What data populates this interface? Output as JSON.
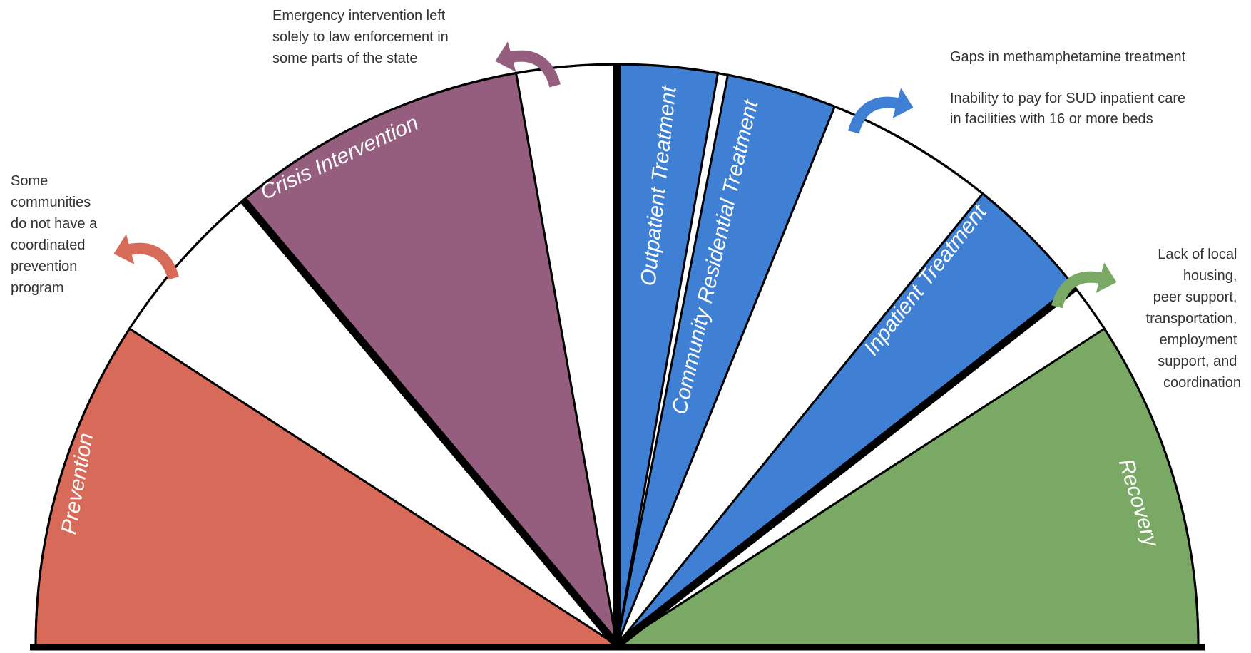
{
  "segments": [
    {
      "id": "prevention",
      "label": "Prevention",
      "color": "#d86a59"
    },
    {
      "id": "crisis",
      "label": "Crisis Intervention",
      "color": "#955e7e"
    },
    {
      "id": "outpatient",
      "label": "Outpatient Treatment",
      "color": "#3f80d4"
    },
    {
      "id": "community",
      "label": "Community Residential Treatment",
      "color": "#3f80d4"
    },
    {
      "id": "inpatient",
      "label": "Inpatient Treatment",
      "color": "#3f80d4"
    },
    {
      "id": "recovery",
      "label": "Recovery",
      "color": "#79a964"
    }
  ],
  "notes": {
    "prevention": [
      "Some",
      "communities",
      "do not have a",
      "coordinated",
      "prevention",
      "program"
    ],
    "crisis": [
      "Emergency intervention left",
      "solely to law enforcement in",
      "some parts of the state"
    ],
    "treatment_1": "Gaps in methamphetamine treatment",
    "treatment_2": [
      "Inability to pay for SUD inpatient care",
      "in facilities with 16 or more beds"
    ],
    "recovery": [
      "Lack of local",
      "housing,",
      "peer support,",
      "transportation,",
      "employment",
      "support, and",
      "coordination"
    ]
  },
  "arrows": [
    {
      "name": "prevention-gap-arrow-icon",
      "color": "#d86a59"
    },
    {
      "name": "crisis-gap-arrow-icon",
      "color": "#955e7e"
    },
    {
      "name": "treatment-gap-arrow-icon",
      "color": "#3f80d4"
    },
    {
      "name": "recovery-gap-arrow-icon",
      "color": "#79a964"
    }
  ],
  "colors": {
    "outline": "#000000",
    "gap_fill": "#ffffff",
    "note_text": "#333333"
  }
}
